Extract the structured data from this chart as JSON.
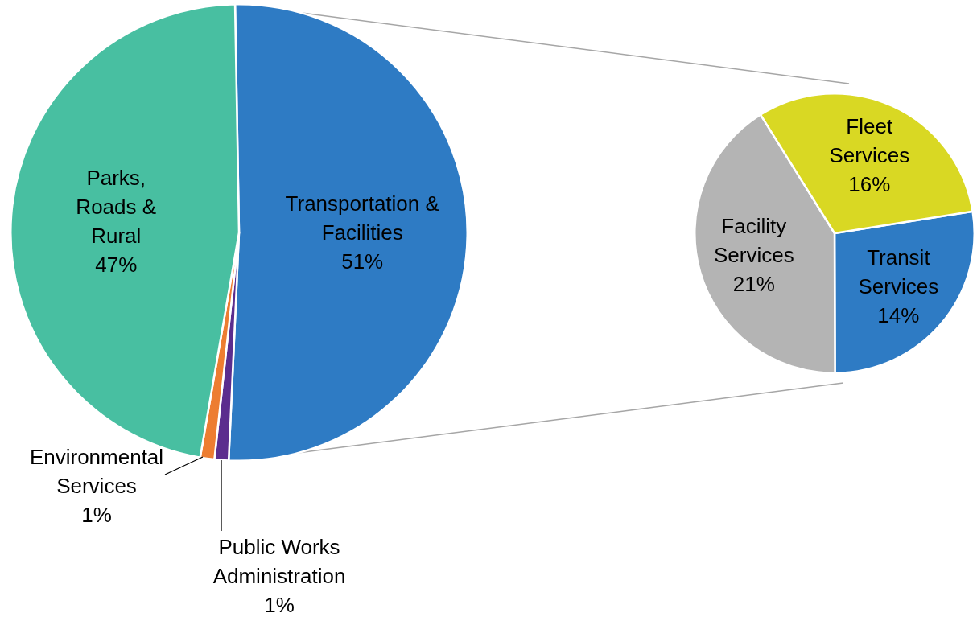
{
  "chart_data": [
    {
      "type": "pie",
      "categories": [
        "Transportation & Facilities",
        "Public Works Administration",
        "Environmental Services",
        "Parks, Roads & Rural"
      ],
      "values": [
        51,
        1,
        1,
        47
      ],
      "value_labels": [
        "51%",
        "1%",
        "1%",
        "47%"
      ],
      "colors": [
        "#2e7bc4",
        "#5b2d8e",
        "#ed7d31",
        "#48bfa1"
      ],
      "legend": false
    },
    {
      "type": "pie",
      "categories": [
        "Transit Services",
        "Facility Services",
        "Fleet Services"
      ],
      "values": [
        14,
        21,
        16
      ],
      "value_labels": [
        "14%",
        "21%",
        "16%"
      ],
      "colors": [
        "#2e7bc4",
        "#b4b4b4",
        "#d9d823"
      ],
      "legend": false
    }
  ]
}
